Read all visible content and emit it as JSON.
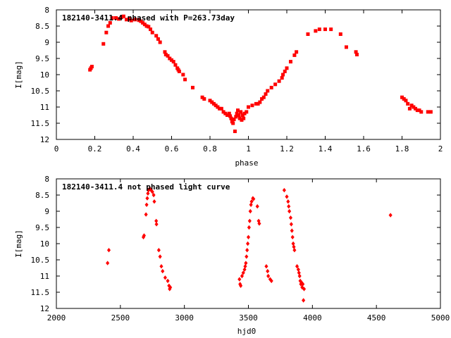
{
  "chart_data": [
    {
      "type": "scatter",
      "title": "182140-3411.4 phased with P=263.73day",
      "xlabel": "phase",
      "ylabel": "I[mag]",
      "xlim": [
        0,
        2
      ],
      "ylim": [
        12,
        8
      ],
      "y_inverted": true,
      "xticks": [
        "0",
        "0.2",
        "0.4",
        "0.6",
        "0.8",
        "1",
        "1.2",
        "1.4",
        "1.6",
        "1.8",
        "2"
      ],
      "yticks": [
        "8",
        "8.5",
        "9",
        "9.5",
        "10",
        "10.5",
        "11",
        "11.5",
        "12"
      ],
      "marker_color": "#ff0000",
      "grid": false,
      "points": [
        [
          0.175,
          9.85
        ],
        [
          0.18,
          9.8
        ],
        [
          0.185,
          9.75
        ],
        [
          0.245,
          9.05
        ],
        [
          0.26,
          8.7
        ],
        [
          0.27,
          8.5
        ],
        [
          0.28,
          8.4
        ],
        [
          0.29,
          8.25
        ],
        [
          0.31,
          8.25
        ],
        [
          0.325,
          8.28
        ],
        [
          0.34,
          8.22
        ],
        [
          0.35,
          8.2
        ],
        [
          0.365,
          8.3
        ],
        [
          0.38,
          8.28
        ],
        [
          0.39,
          8.33
        ],
        [
          0.41,
          8.3
        ],
        [
          0.43,
          8.32
        ],
        [
          0.44,
          8.35
        ],
        [
          0.45,
          8.4
        ],
        [
          0.46,
          8.45
        ],
        [
          0.47,
          8.5
        ],
        [
          0.48,
          8.52
        ],
        [
          0.49,
          8.6
        ],
        [
          0.5,
          8.7
        ],
        [
          0.52,
          8.8
        ],
        [
          0.53,
          8.9
        ],
        [
          0.54,
          9.0
        ],
        [
          0.565,
          9.3
        ],
        [
          0.57,
          9.38
        ],
        [
          0.58,
          9.42
        ],
        [
          0.59,
          9.5
        ],
        [
          0.6,
          9.55
        ],
        [
          0.61,
          9.6
        ],
        [
          0.62,
          9.7
        ],
        [
          0.63,
          9.8
        ],
        [
          0.635,
          9.85
        ],
        [
          0.64,
          9.9
        ],
        [
          0.66,
          10.0
        ],
        [
          0.67,
          10.15
        ],
        [
          0.71,
          10.4
        ],
        [
          0.76,
          10.7
        ],
        [
          0.77,
          10.75
        ],
        [
          0.8,
          10.8
        ],
        [
          0.81,
          10.85
        ],
        [
          0.82,
          10.9
        ],
        [
          0.83,
          10.95
        ],
        [
          0.84,
          11.0
        ],
        [
          0.85,
          11.05
        ],
        [
          0.86,
          11.05
        ],
        [
          0.87,
          11.15
        ],
        [
          0.88,
          11.2
        ],
        [
          0.89,
          11.25
        ],
        [
          0.9,
          11.2
        ],
        [
          0.905,
          11.28
        ],
        [
          0.91,
          11.35
        ],
        [
          0.915,
          11.45
        ],
        [
          0.92,
          11.5
        ],
        [
          0.925,
          11.38
        ],
        [
          0.93,
          11.75
        ],
        [
          0.935,
          11.3
        ],
        [
          0.94,
          11.2
        ],
        [
          0.945,
          11.1
        ],
        [
          0.95,
          11.25
        ],
        [
          0.955,
          11.35
        ],
        [
          0.96,
          11.15
        ],
        [
          0.965,
          11.4
        ],
        [
          0.97,
          11.25
        ],
        [
          0.975,
          11.35
        ],
        [
          0.98,
          11.2
        ],
        [
          0.99,
          11.15
        ],
        [
          1.0,
          11.0
        ],
        [
          1.02,
          10.95
        ],
        [
          1.04,
          10.9
        ],
        [
          1.05,
          10.9
        ],
        [
          1.06,
          10.85
        ],
        [
          1.07,
          10.75
        ],
        [
          1.08,
          10.7
        ],
        [
          1.09,
          10.6
        ],
        [
          1.1,
          10.5
        ],
        [
          1.12,
          10.4
        ],
        [
          1.14,
          10.3
        ],
        [
          1.16,
          10.2
        ],
        [
          1.175,
          10.1
        ],
        [
          1.18,
          10.0
        ],
        [
          1.19,
          9.9
        ],
        [
          1.2,
          9.8
        ],
        [
          1.22,
          9.6
        ],
        [
          1.24,
          9.4
        ],
        [
          1.25,
          9.3
        ],
        [
          1.31,
          8.75
        ],
        [
          1.35,
          8.65
        ],
        [
          1.37,
          8.6
        ],
        [
          1.4,
          8.6
        ],
        [
          1.43,
          8.6
        ],
        [
          1.48,
          8.75
        ],
        [
          1.51,
          9.15
        ],
        [
          1.56,
          9.3
        ],
        [
          1.565,
          9.38
        ],
        [
          1.8,
          10.7
        ],
        [
          1.81,
          10.75
        ],
        [
          1.82,
          10.8
        ],
        [
          1.83,
          10.9
        ],
        [
          1.84,
          11.05
        ],
        [
          1.85,
          10.95
        ],
        [
          1.86,
          11.0
        ],
        [
          1.87,
          11.05
        ],
        [
          1.88,
          11.1
        ],
        [
          1.89,
          11.1
        ],
        [
          1.9,
          11.15
        ],
        [
          1.935,
          11.15
        ],
        [
          1.95,
          11.15
        ]
      ]
    },
    {
      "type": "scatter",
      "title": "182140-3411.4 not phased light curve",
      "xlabel": "hjd0",
      "ylabel": "I[mag]",
      "xlim": [
        2000,
        5000
      ],
      "ylim": [
        12,
        8
      ],
      "y_inverted": true,
      "xticks": [
        "2000",
        "2500",
        "3000",
        "3500",
        "4000",
        "4500",
        "5000"
      ],
      "yticks": [
        "8",
        "8.5",
        "9",
        "9.5",
        "10",
        "10.5",
        "11",
        "11.5",
        "12"
      ],
      "marker_color": "#ff0000",
      "grid": false,
      "points": [
        [
          2400,
          10.6
        ],
        [
          2410,
          10.2
        ],
        [
          2680,
          9.8
        ],
        [
          2685,
          9.75
        ],
        [
          2700,
          9.1
        ],
        [
          2705,
          8.8
        ],
        [
          2710,
          8.6
        ],
        [
          2715,
          8.45
        ],
        [
          2720,
          8.35
        ],
        [
          2730,
          8.3
        ],
        [
          2740,
          8.35
        ],
        [
          2750,
          8.4
        ],
        [
          2760,
          8.5
        ],
        [
          2765,
          8.7
        ],
        [
          2780,
          9.3
        ],
        [
          2782,
          9.4
        ],
        [
          2800,
          10.2
        ],
        [
          2810,
          10.4
        ],
        [
          2820,
          10.7
        ],
        [
          2830,
          10.85
        ],
        [
          2850,
          11.05
        ],
        [
          2870,
          11.15
        ],
        [
          2880,
          11.3
        ],
        [
          2885,
          11.4
        ],
        [
          2890,
          11.35
        ],
        [
          3430,
          11.1
        ],
        [
          3435,
          11.25
        ],
        [
          3440,
          11.3
        ],
        [
          3450,
          11.0
        ],
        [
          3460,
          10.9
        ],
        [
          3470,
          10.8
        ],
        [
          3475,
          10.7
        ],
        [
          3480,
          10.6
        ],
        [
          3485,
          10.4
        ],
        [
          3490,
          10.2
        ],
        [
          3495,
          10.0
        ],
        [
          3500,
          9.8
        ],
        [
          3505,
          9.5
        ],
        [
          3510,
          9.3
        ],
        [
          3515,
          9.0
        ],
        [
          3520,
          8.8
        ],
        [
          3525,
          8.7
        ],
        [
          3535,
          8.6
        ],
        [
          3540,
          8.62
        ],
        [
          3570,
          8.85
        ],
        [
          3580,
          9.3
        ],
        [
          3585,
          9.38
        ],
        [
          3640,
          10.7
        ],
        [
          3650,
          10.85
        ],
        [
          3655,
          11.0
        ],
        [
          3670,
          11.1
        ],
        [
          3680,
          11.15
        ],
        [
          3780,
          8.35
        ],
        [
          3800,
          8.55
        ],
        [
          3810,
          8.7
        ],
        [
          3815,
          8.85
        ],
        [
          3820,
          9.0
        ],
        [
          3830,
          9.2
        ],
        [
          3835,
          9.4
        ],
        [
          3840,
          9.6
        ],
        [
          3845,
          9.8
        ],
        [
          3850,
          10.0
        ],
        [
          3855,
          10.1
        ],
        [
          3860,
          10.2
        ],
        [
          3880,
          10.7
        ],
        [
          3890,
          10.8
        ],
        [
          3895,
          10.9
        ],
        [
          3900,
          11.0
        ],
        [
          3905,
          11.15
        ],
        [
          3910,
          11.25
        ],
        [
          3915,
          11.2
        ],
        [
          3920,
          11.35
        ],
        [
          3925,
          11.25
        ],
        [
          3930,
          11.75
        ],
        [
          3935,
          11.4
        ],
        [
          4610,
          9.12
        ]
      ]
    }
  ]
}
